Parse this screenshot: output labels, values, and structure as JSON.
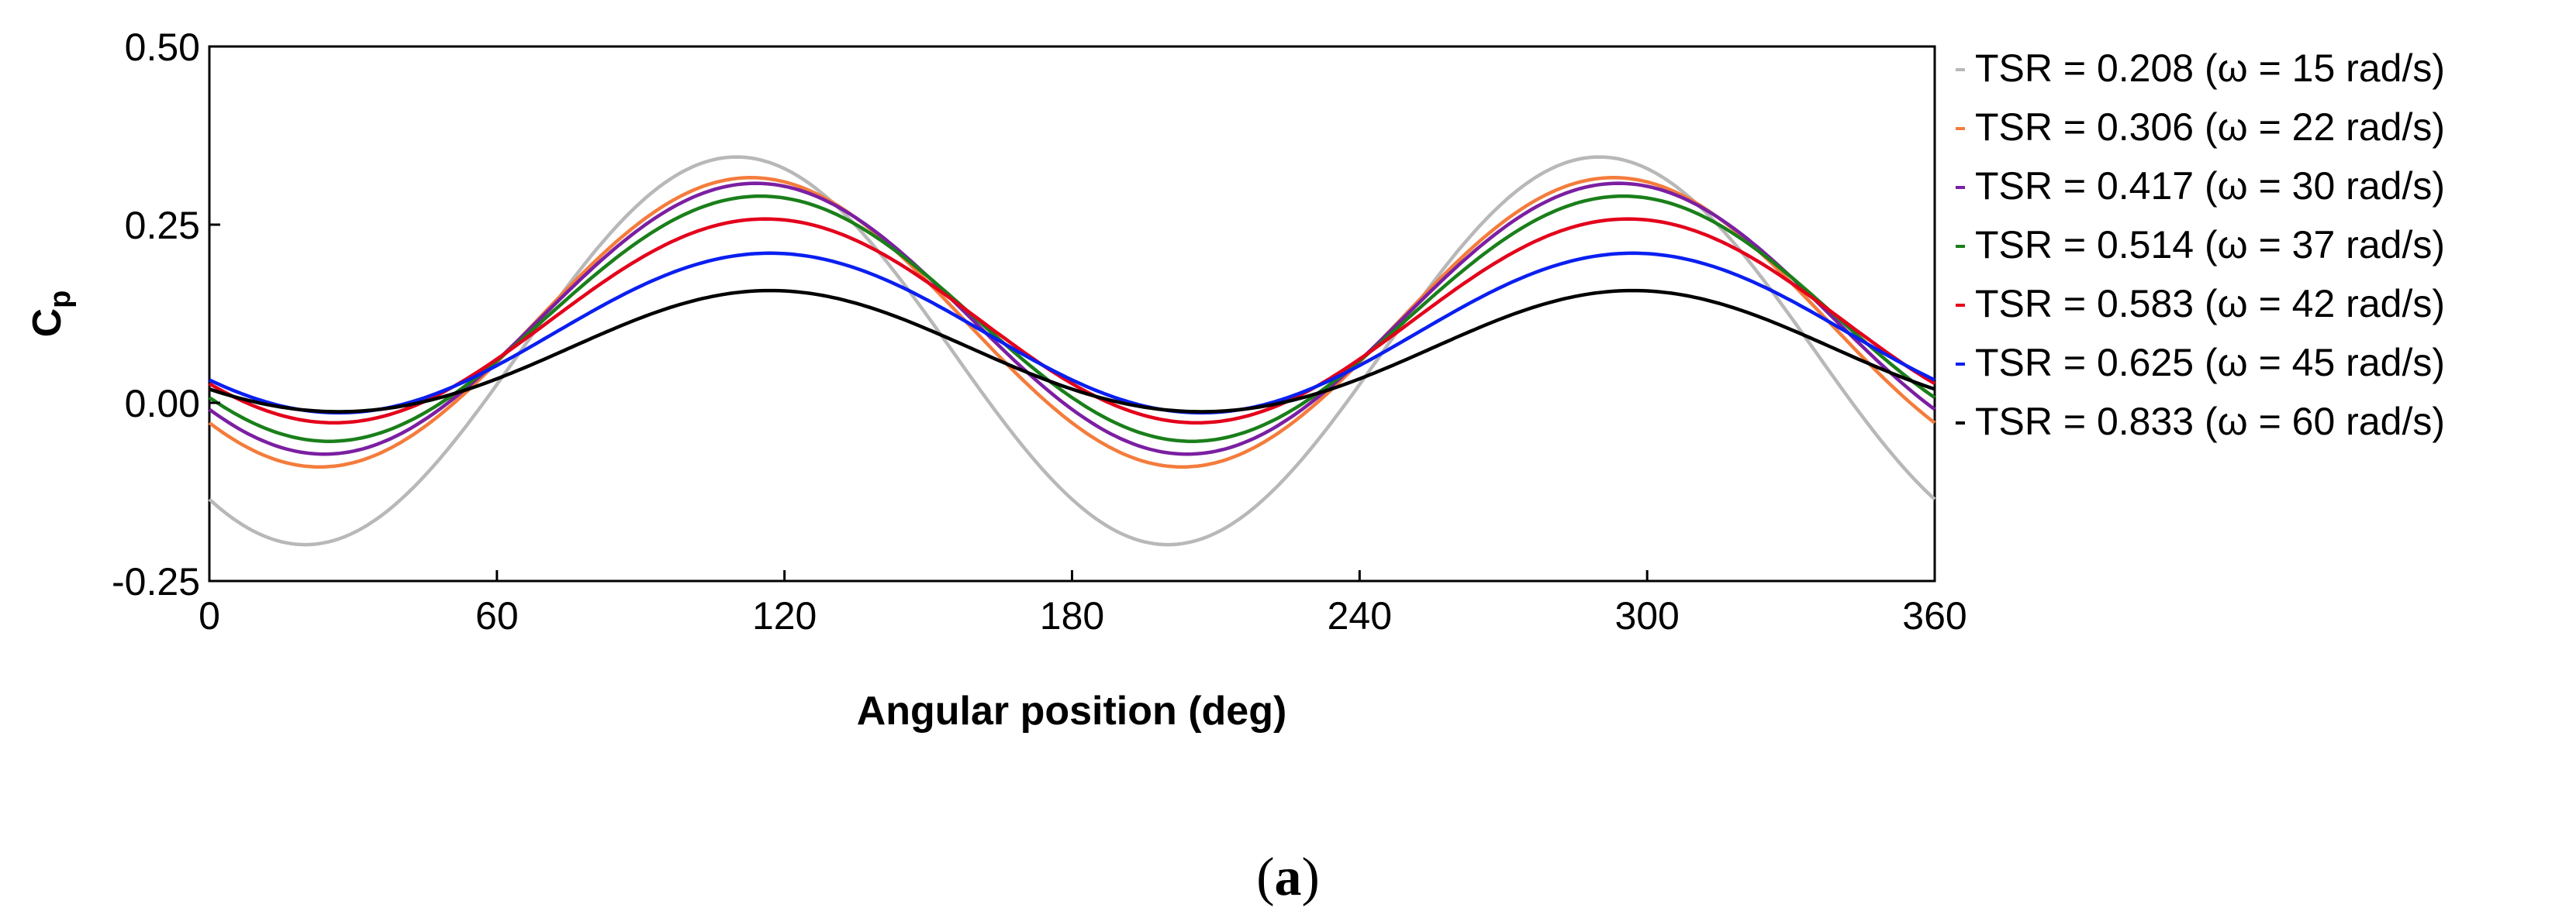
{
  "chart_data": {
    "type": "line",
    "title": "",
    "xlabel": "Angular position (deg)",
    "ylabel_main": "C",
    "ylabel_sub": "p",
    "xlim": [
      0,
      360
    ],
    "ylim": [
      -0.25,
      0.5
    ],
    "xticks": [
      0,
      60,
      120,
      180,
      240,
      300,
      360
    ],
    "xtick_labels": [
      "0",
      "60",
      "120",
      "180",
      "240",
      "300",
      "360"
    ],
    "yticks": [
      0.5,
      0.25,
      0.0,
      -0.25
    ],
    "ytick_labels": [
      "0.50",
      "0.25",
      "0.00",
      "-0.25"
    ],
    "grid": false,
    "legend_position": "outside-right",
    "period_deg": 180,
    "series": [
      {
        "name": "TSR = 0.208 (ω = 15 rad/s)",
        "tsr": "TSR = 0.208",
        "omega": "ω = 15 rad/s",
        "color": "#b8b8b8",
        "mean": 0.073,
        "amplitude": 0.272,
        "peak_deg": 110,
        "flatten": 0.0
      },
      {
        "name": "TSR = 0.306 (ω = 22 rad/s)",
        "tsr": "TSR = 0.306",
        "omega": "ω = 22 rad/s",
        "color": "#f47c3c",
        "mean": 0.113,
        "amplitude": 0.203,
        "peak_deg": 113,
        "flatten": 0.0
      },
      {
        "name": "TSR = 0.417 (ω = 30 rad/s)",
        "tsr": "TSR = 0.417",
        "omega": "ω = 30 rad/s",
        "color": "#7b1fa2",
        "mean": 0.118,
        "amplitude": 0.19,
        "peak_deg": 114,
        "flatten": 0.0
      },
      {
        "name": "TSR = 0.514 (ω = 37 rad/s)",
        "tsr": "TSR = 0.514 ",
        "omega": "ω = 37 rad/s",
        "color": "#1a7f1a",
        "mean": 0.118,
        "amplitude": 0.172,
        "peak_deg": 115,
        "flatten": 0.0
      },
      {
        "name": "TSR = 0.583 (ω = 42 rad/s)",
        "tsr": "TSR = 0.583",
        "omega": "ω = 42 rad/s",
        "color": "#e3001b",
        "mean": 0.115,
        "amplitude": 0.143,
        "peak_deg": 116,
        "flatten": 0.0
      },
      {
        "name": "TSR = 0.625 (ω = 45 rad/s)",
        "tsr": "TSR = 0.625",
        "omega": "ω = 45 rad/s",
        "color": "#0a1ff0",
        "mean": 0.098,
        "amplitude": 0.112,
        "peak_deg": 117,
        "flatten": 0.0
      },
      {
        "name": "TSR = 0.833 (ω = 60 rad/s)",
        "tsr": "TSR = 0.833 ",
        "omega": "ω = 60 rad/s",
        "color": "#000000",
        "mean": 0.07,
        "amplitude": 0.085,
        "peak_deg": 117,
        "flatten": 0.25
      }
    ]
  },
  "caption": {
    "open": "(",
    "letter": "a",
    "close": ")"
  }
}
